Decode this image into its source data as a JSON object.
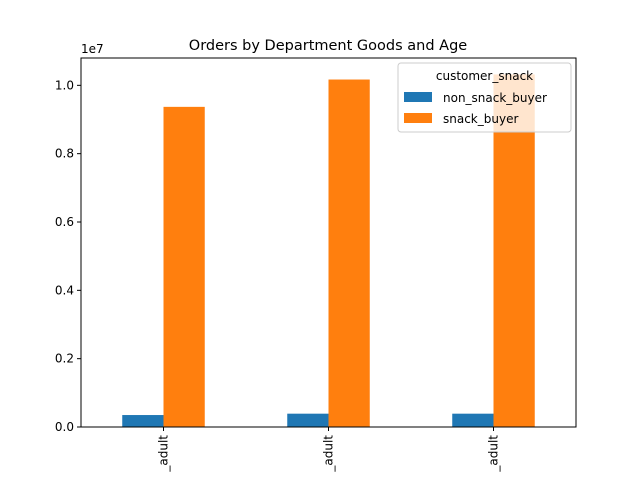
{
  "chart_data": {
    "type": "bar",
    "title": "Orders by Department Goods and Age",
    "xlabel": "",
    "ylabel": "",
    "categories": [
      "_adult",
      "_adult",
      "_adult"
    ],
    "series": [
      {
        "name": "non_snack_buyer",
        "color": "#1f77b4",
        "values": [
          0.035,
          0.039,
          0.039
        ]
      },
      {
        "name": "snack_buyer",
        "color": "#ff7f0e",
        "values": [
          0.937,
          1.017,
          1.032
        ]
      }
    ],
    "ylim": [
      0,
      1.08
    ],
    "yticks": [
      0.0,
      0.2,
      0.4,
      0.6,
      0.8,
      1.0
    ],
    "ytick_labels": [
      "0.0",
      "0.2",
      "0.4",
      "0.6",
      "0.8",
      "1.0"
    ],
    "y_offset_label": "1e7",
    "legend": {
      "title": "customer_snack",
      "placement": "top-right"
    },
    "grid": false
  }
}
